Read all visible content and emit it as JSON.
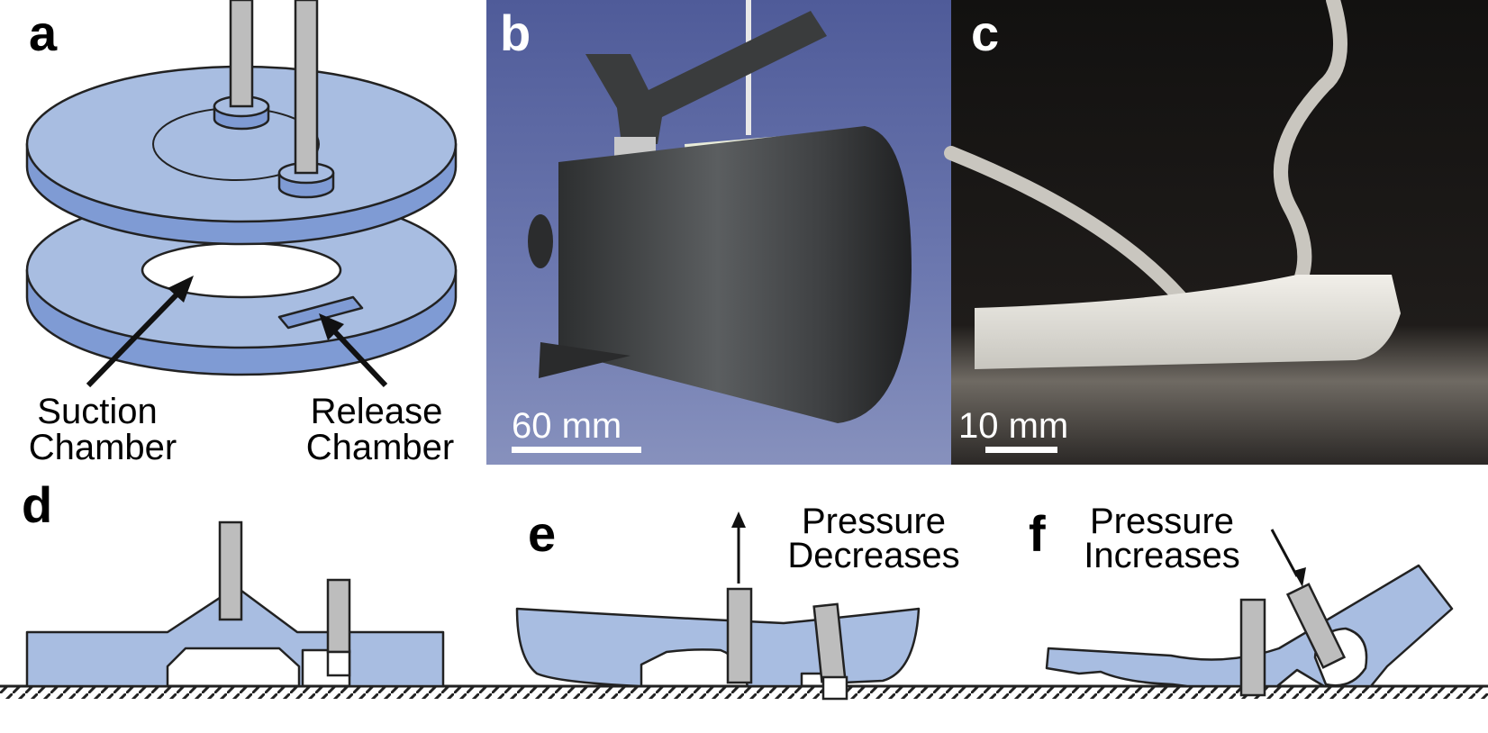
{
  "panels": {
    "a": {
      "label": "a",
      "suction_line1": "Suction",
      "suction_line2": "Chamber",
      "release_line1": "Release",
      "release_line2": "Chamber"
    },
    "b": {
      "label": "b",
      "scale_text": "60 mm"
    },
    "c": {
      "label": "c",
      "scale_text": "10 mm"
    },
    "d": {
      "label": "d"
    },
    "e": {
      "label": "e",
      "note_line1": "Pressure",
      "note_line2": "Decreases"
    },
    "f": {
      "label": "f",
      "note_line1": "Pressure",
      "note_line2": "Increases"
    }
  },
  "colors": {
    "material_light": "#a8bde1",
    "material_side": "#7f9bd4",
    "rod": "#bdbdbd",
    "photo_b_background": "#5e6ba8",
    "photo_c_background": "#1a1715"
  }
}
